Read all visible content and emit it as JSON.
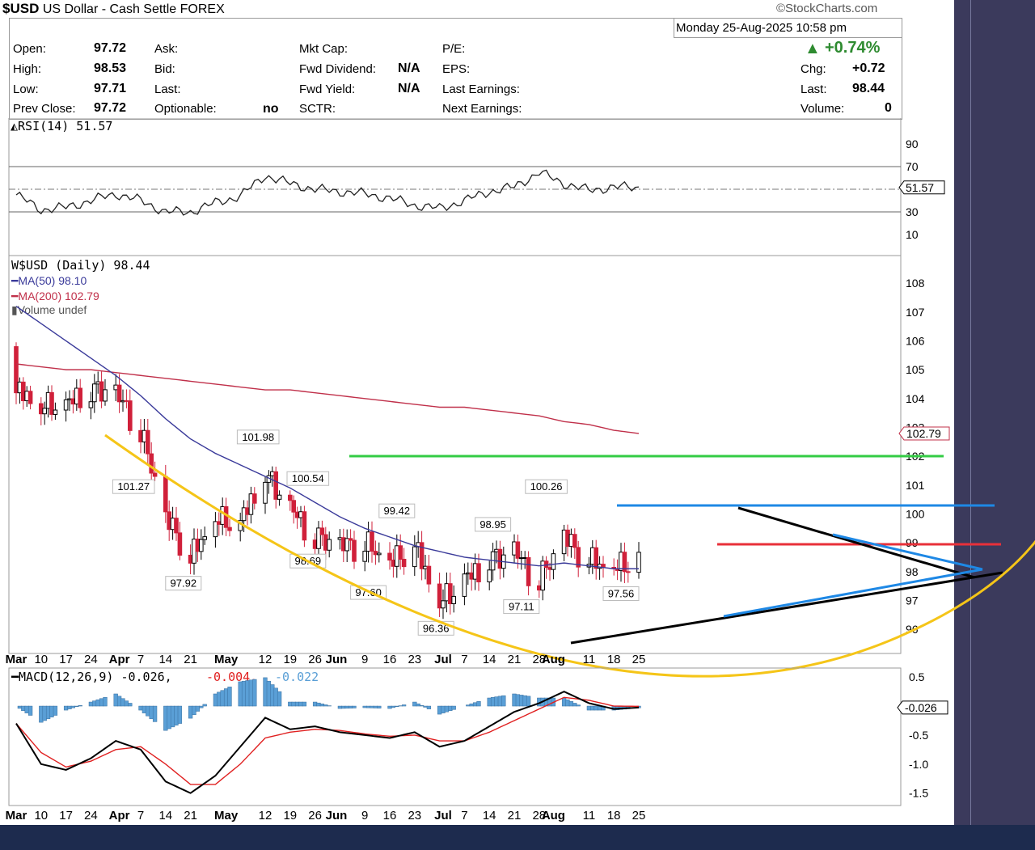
{
  "header": {
    "ticker": "$USD",
    "name": "US Dollar - Cash Settle",
    "exchange": "FOREX",
    "copyright": "©StockCharts.com",
    "date": "Monday  25-Aug-2025  10:58 pm",
    "change_pct": "+0.74%"
  },
  "quote": {
    "open_label": "Open:",
    "open": "97.72",
    "high_label": "High:",
    "high": "98.53",
    "low_label": "Low:",
    "low": "97.71",
    "prev_label": "Prev Close:",
    "prev": "97.72",
    "ask_label": "Ask:",
    "bid_label": "Bid:",
    "last_label2": "Last:",
    "optionable_label": "Optionable:",
    "optionable": "no",
    "mktcap_label": "Mkt Cap:",
    "fwddiv_label": "Fwd Dividend:",
    "fwddiv": "N/A",
    "fwdyield_label": "Fwd Yield:",
    "fwdyield": "N/A",
    "sctr_label": "SCTR:",
    "pe_label": "P/E:",
    "eps_label": "EPS:",
    "lastearn_label": "Last Earnings:",
    "nextearn_label": "Next Earnings:",
    "chg_label": "Chg:",
    "chg": "+0.72",
    "last_label": "Last:",
    "last": "98.44",
    "volume_label": "Volume:",
    "volume": "0"
  },
  "colors": {
    "up": "#000000",
    "down": "#d0203a",
    "ma50": "#3a3a9a",
    "ma200": "#c0304a",
    "rsi_fill": "#c08090",
    "macd_hist": "#5a9fd6",
    "signal": "#e02020",
    "green_line": "#33cc44",
    "blue_line": "#1e88e5",
    "red_line": "#e8303a",
    "arc": "#f5c518",
    "change_up": "#2e8b30"
  },
  "chart_data": [
    {
      "type": "line",
      "title": "RSI(14) 51.57",
      "ylim": [
        0,
        100
      ],
      "ticks": [
        "90",
        "70",
        "30",
        "10"
      ],
      "reference_lines": [
        70,
        50,
        30
      ],
      "current_label": "51.57",
      "x": [
        "Mar 3",
        "Mar 10",
        "Mar 17",
        "Mar 24",
        "Mar 31",
        "Apr 7",
        "Apr 14",
        "Apr 21",
        "Apr 28",
        "May 5",
        "May 12",
        "May 19",
        "May 26",
        "Jun 2",
        "Jun 9",
        "Jun 16",
        "Jun 23",
        "Jun 30",
        "Jul 7",
        "Jul 14",
        "Jul 21",
        "Jul 28",
        "Aug 4",
        "Aug 11",
        "Aug 18",
        "Aug 25"
      ],
      "values": [
        45,
        32,
        34,
        40,
        46,
        40,
        30,
        30,
        38,
        44,
        62,
        55,
        50,
        48,
        46,
        42,
        36,
        33,
        40,
        48,
        52,
        65,
        55,
        49,
        52,
        51.57
      ]
    },
    {
      "type": "candlestick",
      "title": "$USD (Daily) 98.44",
      "legend": [
        "MA(50) 98.10",
        "MA(200) 102.79",
        "Volume undef"
      ],
      "ylim": [
        95.5,
        109
      ],
      "yticks": [
        "108",
        "107",
        "106",
        "105",
        "104",
        "103",
        "102",
        "101",
        "100",
        "99",
        "98",
        "97",
        "96"
      ],
      "xticks": [
        "Mar",
        "10",
        "17",
        "24",
        "Apr",
        "7",
        "14",
        "21",
        "May",
        "12",
        "19",
        "26",
        "Jun",
        "9",
        "16",
        "23",
        "Jul",
        "7",
        "14",
        "21",
        "28",
        "Aug",
        "11",
        "18",
        "25"
      ],
      "x": [
        "Mar 3",
        "Mar 10",
        "Mar 17",
        "Mar 24",
        "Mar 31",
        "Apr 7",
        "Apr 14",
        "Apr 21",
        "Apr 28",
        "May 5",
        "May 12",
        "May 19",
        "May 26",
        "Jun 2",
        "Jun 9",
        "Jun 16",
        "Jun 23",
        "Jun 30",
        "Jul 7",
        "Jul 14",
        "Jul 21",
        "Jul 28",
        "Aug 4",
        "Aug 11",
        "Aug 18",
        "Aug 25"
      ],
      "close": [
        104.2,
        103.6,
        103.7,
        104.2,
        104.1,
        102.8,
        99.8,
        98.4,
        99.7,
        99.6,
        101.3,
        100.1,
        99.1,
        98.8,
        98.9,
        98.2,
        98.8,
        96.8,
        97.6,
        98.3,
        98.6,
        97.6,
        99.1,
        98.3,
        98.0,
        98.44
      ],
      "ma50": [
        107.2,
        106.6,
        106.0,
        105.4,
        104.8,
        104.1,
        103.3,
        102.6,
        102.1,
        101.7,
        101.3,
        100.9,
        100.4,
        99.9,
        99.5,
        99.2,
        98.9,
        98.7,
        98.5,
        98.4,
        98.3,
        98.2,
        98.3,
        98.2,
        98.1,
        98.1
      ],
      "ma200": [
        105.2,
        105.1,
        105.0,
        105.0,
        104.9,
        104.8,
        104.7,
        104.6,
        104.5,
        104.4,
        104.3,
        104.3,
        104.2,
        104.1,
        104.0,
        103.9,
        103.8,
        103.7,
        103.7,
        103.6,
        103.5,
        103.4,
        103.2,
        103.1,
        102.9,
        102.79
      ],
      "current_label": "102.79",
      "annotations": [
        {
          "text": "101.98",
          "date": "May 12",
          "price": 101.98
        },
        {
          "text": "101.27",
          "date": "Apr 7",
          "price": 101.27
        },
        {
          "text": "100.54",
          "date": "May 26",
          "price": 100.54
        },
        {
          "text": "99.42",
          "date": "Jun 20",
          "price": 99.42
        },
        {
          "text": "98.95",
          "date": "Jul 17",
          "price": 98.95
        },
        {
          "text": "100.26",
          "date": "Aug 1",
          "price": 100.26
        },
        {
          "text": "97.92",
          "date": "Apr 21",
          "price": 97.92
        },
        {
          "text": "98.69",
          "date": "May 26",
          "price": 98.69
        },
        {
          "text": "97.60",
          "date": "Jun 12",
          "price": 97.6
        },
        {
          "text": "96.36",
          "date": "Jul 1",
          "price": 96.36
        },
        {
          "text": "97.11",
          "date": "Jul 25",
          "price": 97.11
        },
        {
          "text": "97.56",
          "date": "Aug 22",
          "price": 97.56
        }
      ]
    },
    {
      "type": "line",
      "title": "MACD(12,26,9)",
      "legend": [
        "-0.026",
        "-0.004",
        "-0.022"
      ],
      "ylim": [
        -1.7,
        0.6
      ],
      "yticks": [
        "0.5",
        "-0.5",
        "-1.0",
        "-1.5"
      ],
      "current_label": "-0.026",
      "x": [
        "Mar 3",
        "Mar 10",
        "Mar 17",
        "Mar 24",
        "Mar 31",
        "Apr 7",
        "Apr 14",
        "Apr 21",
        "Apr 28",
        "May 5",
        "May 12",
        "May 19",
        "May 26",
        "Jun 2",
        "Jun 9",
        "Jun 16",
        "Jun 23",
        "Jun 30",
        "Jul 7",
        "Jul 14",
        "Jul 21",
        "Jul 28",
        "Aug 4",
        "Aug 11",
        "Aug 18",
        "Aug 25"
      ],
      "macd": [
        -0.3,
        -1.0,
        -1.1,
        -0.9,
        -0.6,
        -0.75,
        -1.3,
        -1.5,
        -1.2,
        -0.7,
        -0.2,
        -0.4,
        -0.35,
        -0.45,
        -0.5,
        -0.55,
        -0.45,
        -0.7,
        -0.6,
        -0.35,
        -0.1,
        0.05,
        0.25,
        0.05,
        -0.05,
        -0.026
      ],
      "signal": [
        -0.3,
        -0.8,
        -1.05,
        -0.95,
        -0.75,
        -0.7,
        -1.0,
        -1.35,
        -1.35,
        -1.0,
        -0.55,
        -0.45,
        -0.4,
        -0.42,
        -0.48,
        -0.52,
        -0.5,
        -0.6,
        -0.6,
        -0.45,
        -0.25,
        -0.05,
        0.15,
        0.1,
        0.0,
        -0.004
      ]
    }
  ]
}
